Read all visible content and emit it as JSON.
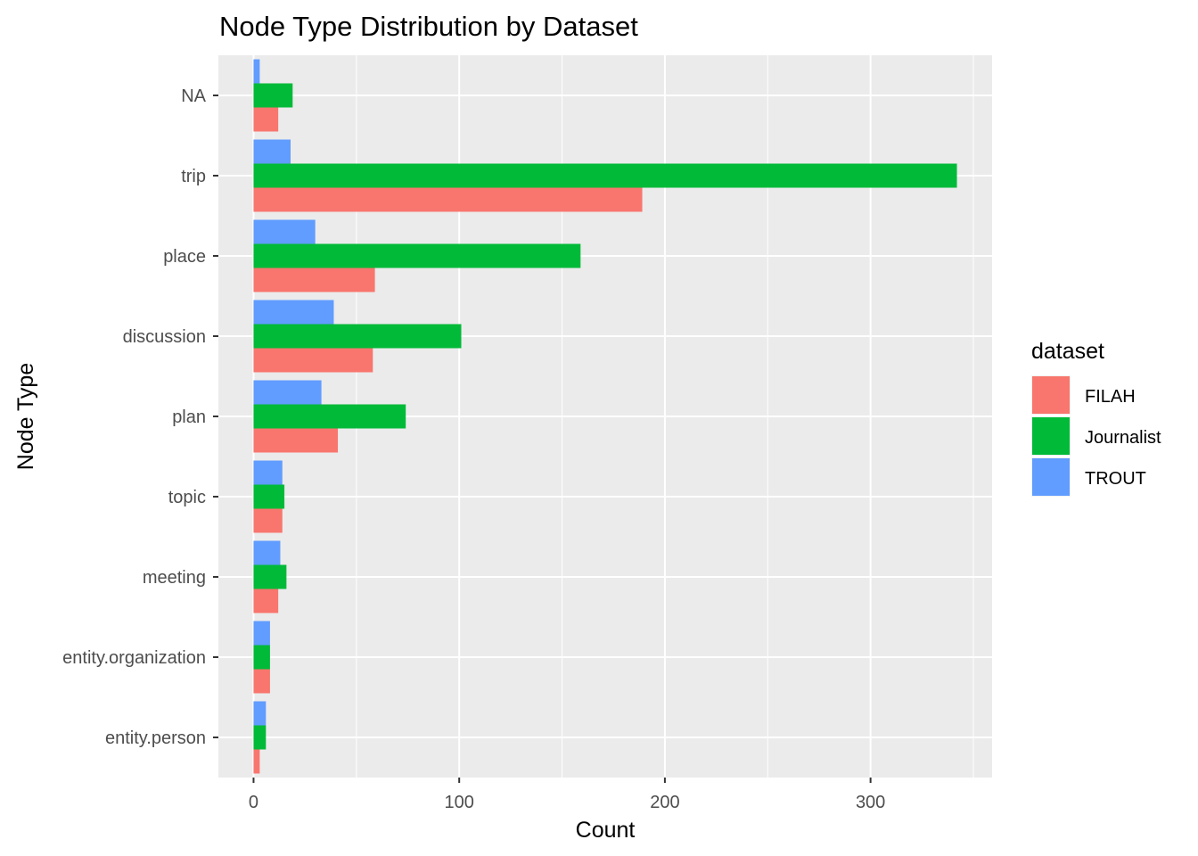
{
  "chart_data": {
    "type": "bar",
    "orientation": "horizontal",
    "title": "Node Type Distribution by Dataset",
    "xlabel": "Count",
    "ylabel": "Node Type",
    "categories": [
      "NA",
      "trip",
      "place",
      "discussion",
      "plan",
      "topic",
      "meeting",
      "entity.organization",
      "entity.person"
    ],
    "series": [
      {
        "name": "FILAH",
        "color": "#F8766D",
        "values": [
          12,
          189,
          59,
          58,
          41,
          14,
          12,
          8,
          3
        ]
      },
      {
        "name": "Journalist",
        "color": "#00BA38",
        "values": [
          19,
          342,
          159,
          101,
          74,
          15,
          16,
          8,
          6
        ]
      },
      {
        "name": "TROUT",
        "color": "#619CFF",
        "values": [
          3,
          18,
          30,
          39,
          33,
          14,
          13,
          8,
          6
        ]
      }
    ],
    "xlim": [
      -17.1,
      359.1
    ],
    "xticks": [
      0,
      100,
      200,
      300
    ],
    "xtick_labels": [
      "0",
      "100",
      "200",
      "300"
    ],
    "grid": true,
    "legend": {
      "title": "dataset",
      "position": "right"
    },
    "panel_background": "#EBEBEB"
  }
}
